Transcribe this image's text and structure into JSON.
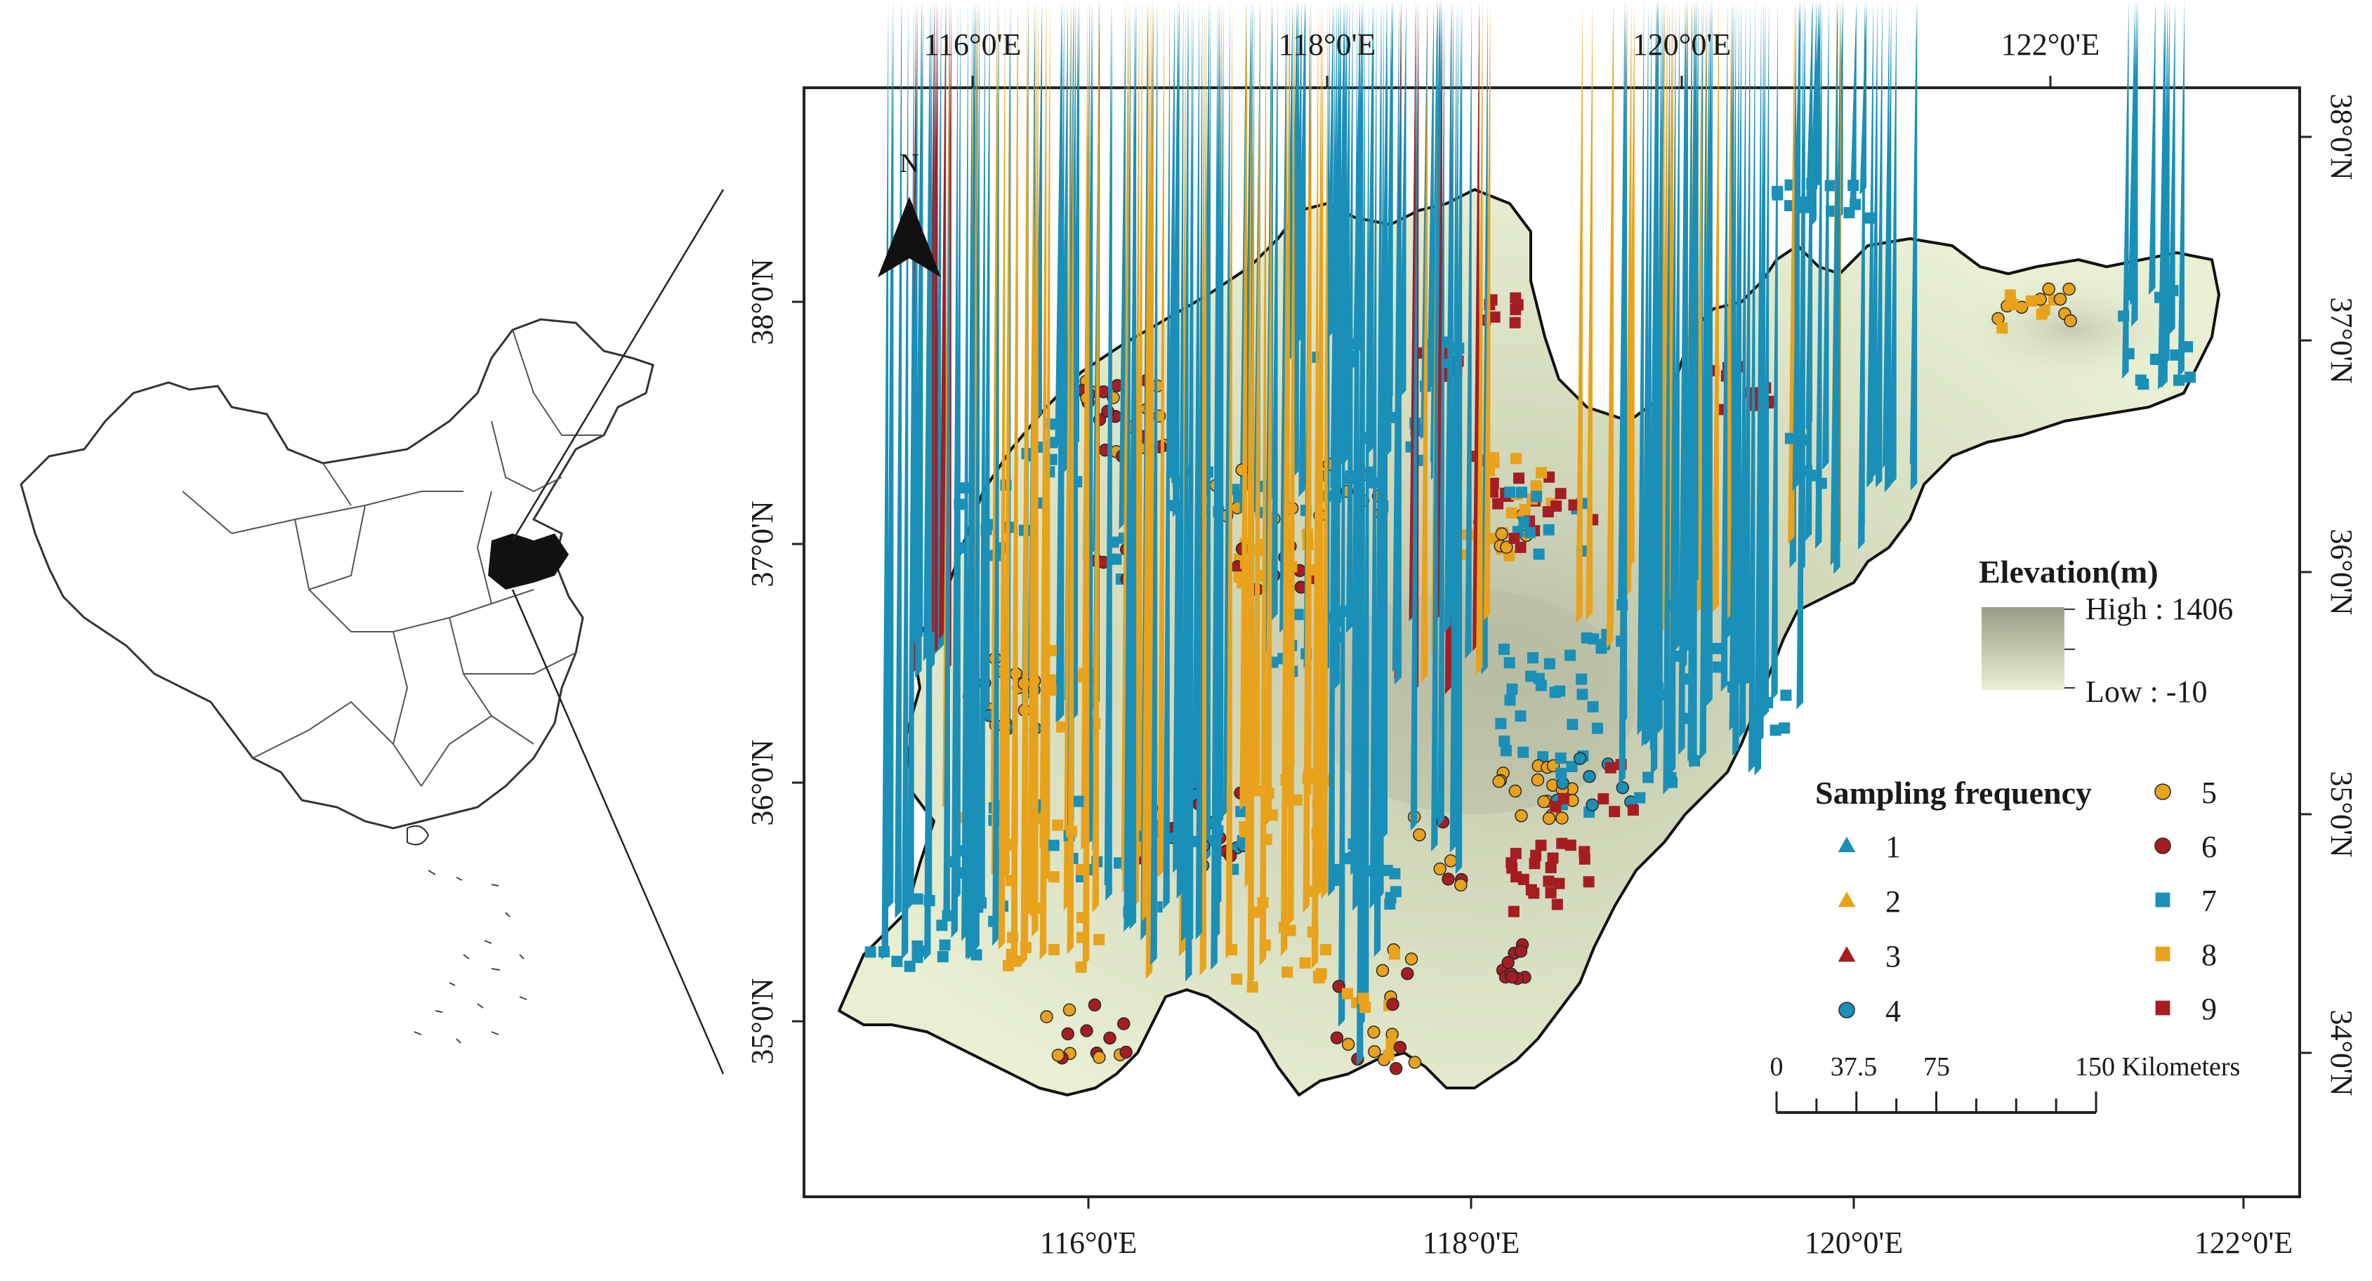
{
  "map": {
    "north_label": "N",
    "top_lon_ticks": [
      "116°0'E",
      "118°0'E",
      "120°0'E",
      "122°0'E"
    ],
    "bottom_lon_ticks": [
      "116°0'E",
      "118°0'E",
      "120°0'E",
      "122°0'E"
    ],
    "left_lat_ticks": [
      "38°0'N",
      "37°0'N",
      "36°0'N",
      "35°0'N"
    ],
    "right_lat_ticks": [
      "38°0'N",
      "37°0'N",
      "36°0'N",
      "35°0'N",
      "34°0'N"
    ]
  },
  "elevation_legend": {
    "title": "Elevation(m)",
    "high_label": "High : 1406",
    "low_label": "Low : -10",
    "high_color": "#9a9d86",
    "low_color": "#e9f0d4"
  },
  "sampling_legend": {
    "title": "Sampling frequency",
    "items": [
      {
        "label": "1",
        "shape": "triangle",
        "color": "#1a8fb8"
      },
      {
        "label": "2",
        "shape": "triangle",
        "color": "#e8a21b"
      },
      {
        "label": "3",
        "shape": "triangle",
        "color": "#a51d23"
      },
      {
        "label": "4",
        "shape": "circle",
        "color": "#1a8fb8"
      },
      {
        "label": "5",
        "shape": "circle",
        "color": "#e8a21b"
      },
      {
        "label": "6",
        "shape": "circle",
        "color": "#a51d23"
      },
      {
        "label": "7",
        "shape": "square",
        "color": "#1a8fb8"
      },
      {
        "label": "8",
        "shape": "square",
        "color": "#e8a21b"
      },
      {
        "label": "9",
        "shape": "square",
        "color": "#a51d23"
      }
    ]
  },
  "scale_bar": {
    "labels": [
      "0",
      "37.5",
      "75",
      "150 Kilometers"
    ]
  }
}
